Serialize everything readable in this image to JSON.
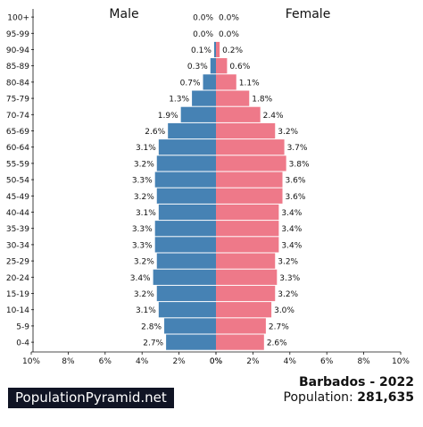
{
  "chart_data": {
    "type": "bar",
    "title": "Barbados - 2022",
    "left_label": "Male",
    "right_label": "Female",
    "categories": [
      "100+",
      "95-99",
      "90-94",
      "85-89",
      "80-84",
      "75-79",
      "70-74",
      "65-69",
      "60-64",
      "55-59",
      "50-54",
      "45-49",
      "40-44",
      "35-39",
      "30-34",
      "25-29",
      "20-24",
      "15-19",
      "10-14",
      "5-9",
      "0-4"
    ],
    "series": [
      {
        "name": "Male",
        "color": "#4682b4",
        "values": [
          0.0,
          0.0,
          0.1,
          0.3,
          0.7,
          1.3,
          1.9,
          2.6,
          3.1,
          3.2,
          3.3,
          3.2,
          3.1,
          3.3,
          3.3,
          3.2,
          3.4,
          3.2,
          3.1,
          2.8,
          2.7
        ],
        "labels": [
          "0.0%",
          "0.0%",
          "0.1%",
          "0.3%",
          "0.7%",
          "1.3%",
          "1.9%",
          "2.6%",
          "3.1%",
          "3.2%",
          "3.3%",
          "3.2%",
          "3.1%",
          "3.3%",
          "3.3%",
          "3.2%",
          "3.4%",
          "3.2%",
          "3.1%",
          "2.8%",
          "2.7%"
        ]
      },
      {
        "name": "Female",
        "color": "#ee7989",
        "values": [
          0.0,
          0.0,
          0.2,
          0.6,
          1.1,
          1.8,
          2.4,
          3.2,
          3.7,
          3.8,
          3.6,
          3.6,
          3.4,
          3.4,
          3.4,
          3.2,
          3.3,
          3.2,
          3.0,
          2.7,
          2.6
        ],
        "labels": [
          "0.0%",
          "0.0%",
          "0.2%",
          "0.6%",
          "1.1%",
          "1.8%",
          "2.4%",
          "3.2%",
          "3.7%",
          "3.8%",
          "3.6%",
          "3.6%",
          "3.4%",
          "3.4%",
          "3.4%",
          "3.2%",
          "3.3%",
          "3.2%",
          "3.0%",
          "2.7%",
          "2.6%"
        ]
      }
    ],
    "xlim": [
      0,
      10
    ],
    "left_ticks": [
      "10%",
      "8%",
      "6%",
      "4%",
      "2%",
      "0%"
    ],
    "right_ticks": [
      "0%",
      "2%",
      "4%",
      "6%",
      "8%",
      "10%"
    ],
    "grid": false
  },
  "footer": {
    "brand": "PopulationPyramid.net",
    "country_year": "Barbados - 2022",
    "population_label": "Population:",
    "population_value": "281,635"
  }
}
